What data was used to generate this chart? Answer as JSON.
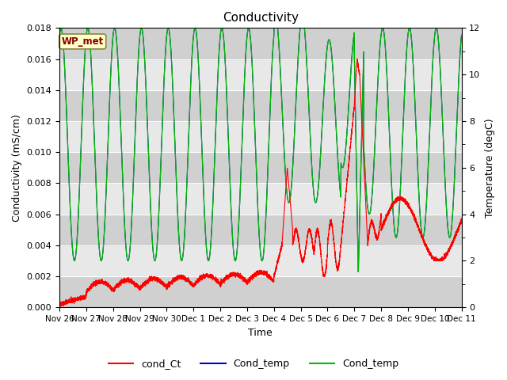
{
  "title": "Conductivity",
  "ylabel_left": "Conductivity (mS/cm)",
  "ylabel_right": "Temperature (degC)",
  "xlabel": "Time",
  "ylim_left": [
    0.0,
    0.018
  ],
  "ylim_right": [
    0,
    12
  ],
  "yticks_left": [
    0.0,
    0.002,
    0.004,
    0.006,
    0.008,
    0.01,
    0.012,
    0.014,
    0.016,
    0.018
  ],
  "yticks_right": [
    0,
    2,
    4,
    6,
    8,
    10,
    12
  ],
  "bg_color": "#ffffff",
  "plot_bg_color": "#e8e8e8",
  "band_dark": "#d0d0d0",
  "band_light": "#e8e8e8",
  "legend_entries": [
    "cond_Ct",
    "Cond_temp",
    "Cond_temp"
  ],
  "legend_colors": [
    "#ff0000",
    "#0000cc",
    "#00bb00"
  ],
  "annotation_text": "WP_met",
  "annotation_bg": "#ffffc8",
  "annotation_border": "#888840",
  "annotation_text_color": "#880000",
  "xtick_labels": [
    "Nov 26",
    "Nov 27",
    "Nov 28",
    "Nov 29",
    "Nov 30",
    "Dec 1",
    "Dec 2",
    "Dec 3",
    "Dec 4",
    "Dec 5",
    "Dec 6",
    "Dec 7",
    "Dec 8",
    "Dec 9",
    "Dec 10",
    "Dec 11"
  ],
  "n_days": 15,
  "seed": 42
}
